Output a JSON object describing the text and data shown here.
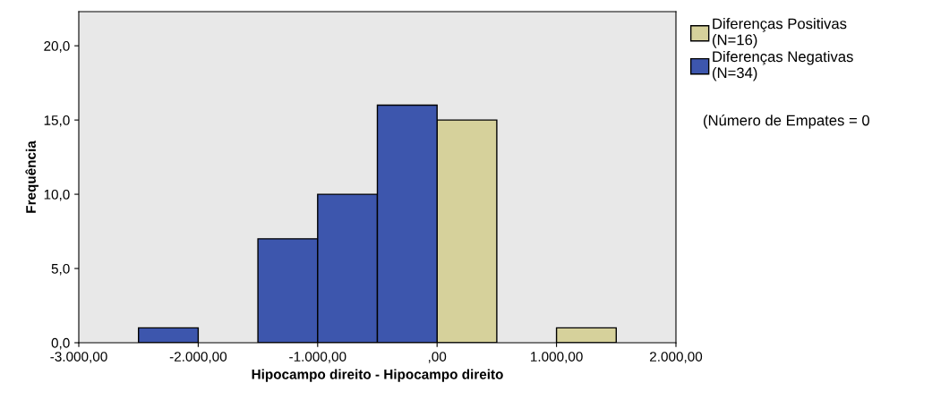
{
  "chart_data": {
    "type": "histogram",
    "xlabel": "Hipocampo direito - Hipocampo direito",
    "ylabel": "Frequência",
    "bins": [
      -3000,
      -2500,
      -2000,
      -1500,
      -1000,
      -500,
      0,
      500,
      1000,
      1500,
      2000
    ],
    "series": [
      {
        "name": "Diferenças Positivas\n(N=16)",
        "color": "#d6d19b",
        "values": [
          null,
          null,
          null,
          null,
          null,
          null,
          15,
          null,
          1,
          null
        ]
      },
      {
        "name": "Diferenças Negativas\n(N=34)",
        "color": "#3d56ad",
        "values": [
          null,
          1,
          null,
          7,
          10,
          16,
          null,
          null,
          null,
          null
        ]
      }
    ],
    "xlim": [
      -3000,
      2000
    ],
    "xticks": [
      {
        "value": -3000,
        "label": "-3.000,00"
      },
      {
        "value": -2000,
        "label": "-2.000,00"
      },
      {
        "value": -1000,
        "label": "-1.000,00"
      },
      {
        "value": 0,
        "label": ",00"
      },
      {
        "value": 1000,
        "label": "1.000,00"
      },
      {
        "value": 2000,
        "label": "2.000,00"
      }
    ],
    "ylim": [
      0,
      22.3
    ],
    "yticks": [
      {
        "value": 0,
        "label": "0,0"
      },
      {
        "value": 5,
        "label": "5,0"
      },
      {
        "value": 10,
        "label": "10,0"
      },
      {
        "value": 15,
        "label": "15,0"
      },
      {
        "value": 20,
        "label": "20,0"
      }
    ],
    "annotations": [
      "(Número de Empates = 0"
    ],
    "legend": "right",
    "grid": false
  }
}
